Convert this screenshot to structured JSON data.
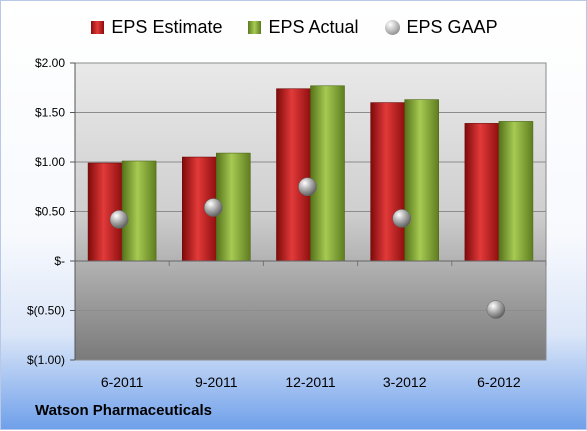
{
  "company": "Watson Pharmaceuticals",
  "colors": {
    "estimate": "#c81e1e",
    "actual": "#8db33c",
    "gaap": "#9a9a9a"
  },
  "chart_data": {
    "type": "bar",
    "categories": [
      "6-2011",
      "9-2011",
      "12-2011",
      "3-2012",
      "6-2012"
    ],
    "series": [
      {
        "name": "EPS Estimate",
        "type": "bar",
        "values": [
          0.99,
          1.05,
          1.74,
          1.6,
          1.39
        ]
      },
      {
        "name": "EPS Actual",
        "type": "bar",
        "values": [
          1.01,
          1.09,
          1.77,
          1.63,
          1.41
        ]
      },
      {
        "name": "EPS GAAP",
        "type": "scatter",
        "values": [
          0.42,
          0.54,
          0.75,
          0.43,
          -0.49
        ]
      }
    ],
    "ylim": [
      -1.0,
      2.0
    ],
    "yticks": [
      2.0,
      1.5,
      1.0,
      0.5,
      0.0,
      -0.5,
      -1.0
    ],
    "ytick_labels": [
      "$2.00",
      "$1.50",
      "$1.00",
      "$0.50",
      "$-",
      "$(0.50)",
      "$(1.00)"
    ],
    "legend": "top",
    "grid": true
  }
}
